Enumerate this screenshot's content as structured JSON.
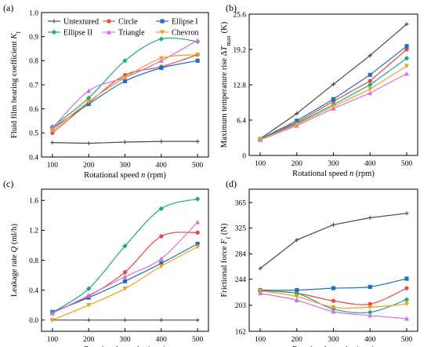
{
  "colors": {
    "Untextured": "#4a4a4a",
    "Circle": "#e8473f",
    "Ellipse I": "#1f6fbf",
    "Ellipse II": "#1aa98a",
    "Triangle": "#d86fe0",
    "Chevron": "#f0a020"
  },
  "chart_data": [
    {
      "panel": "(a)",
      "type": "scatter",
      "xlabel": "Rotational speed  n (rpm)",
      "ylabel": "Fluid film bearing coefficient K_f",
      "x": [
        100,
        200,
        300,
        400,
        500
      ],
      "xlim": [
        70,
        530
      ],
      "ylim": [
        0.4,
        1.0
      ],
      "yticks": [
        0.4,
        0.5,
        0.6,
        0.7,
        0.8,
        0.9,
        1.0
      ],
      "ytick_labels": [
        "0.4",
        "0.5",
        "0.6",
        "0.7",
        "0.8",
        "0.9",
        "1.0"
      ],
      "legend": "top",
      "series": [
        {
          "name": "Untextured",
          "values": [
            0.46,
            0.457,
            0.462,
            0.465,
            0.465
          ]
        },
        {
          "name": "Circle",
          "values": [
            0.5,
            0.625,
            0.74,
            0.775,
            0.825
          ]
        },
        {
          "name": "Ellipse I",
          "values": [
            0.52,
            0.62,
            0.715,
            0.77,
            0.8
          ]
        },
        {
          "name": "Ellipse II",
          "values": [
            0.525,
            0.645,
            0.8,
            0.89,
            0.88
          ]
        },
        {
          "name": "Triangle",
          "values": [
            0.52,
            0.675,
            0.73,
            0.8,
            0.885
          ]
        },
        {
          "name": "Chevron",
          "values": [
            0.51,
            0.63,
            0.73,
            0.81,
            0.825
          ]
        }
      ]
    },
    {
      "panel": "(b)",
      "type": "line",
      "xlabel": "Rotational speed  n (rpm)",
      "ylabel": "Maximum temperature rise ΔT_max (K)",
      "x": [
        100,
        200,
        300,
        400,
        500
      ],
      "xlim": [
        70,
        530
      ],
      "ylim": [
        0,
        25.6
      ],
      "yticks": [
        0,
        6.4,
        12.8,
        19.2,
        25.6
      ],
      "ytick_labels": [
        "0",
        "6.4",
        "12.8",
        "19.2",
        "25.6"
      ],
      "series": [
        {
          "name": "Untextured",
          "values": [
            3.0,
            7.6,
            12.9,
            18.1,
            23.8
          ]
        },
        {
          "name": "Circle",
          "values": [
            2.9,
            6.0,
            9.8,
            13.5,
            19.2
          ]
        },
        {
          "name": "Ellipse I",
          "values": [
            2.95,
            6.3,
            10.2,
            14.6,
            19.8
          ]
        },
        {
          "name": "Ellipse II",
          "values": [
            2.9,
            5.8,
            9.2,
            12.8,
            17.6
          ]
        },
        {
          "name": "Triangle",
          "values": [
            2.8,
            5.4,
            8.5,
            11.3,
            14.8
          ]
        },
        {
          "name": "Chevron",
          "values": [
            2.9,
            5.6,
            8.9,
            12.0,
            16.2
          ]
        }
      ]
    },
    {
      "panel": "(c)",
      "type": "scatter",
      "xlabel": "Rotational speed  n (rpm)",
      "ylabel": "Leakage rate Q (ml/h)",
      "x": [
        100,
        200,
        300,
        400,
        500
      ],
      "xlim": [
        70,
        530
      ],
      "ylim": [
        -0.15,
        1.75
      ],
      "yticks": [
        0.0,
        0.4,
        0.8,
        1.2,
        1.6
      ],
      "ytick_labels": [
        "0.0",
        "0.4",
        "0.8",
        "1.2",
        "1.6"
      ],
      "series": [
        {
          "name": "Untextured",
          "values": [
            0.0,
            0.0,
            0.0,
            0.0,
            0.0
          ]
        },
        {
          "name": "Circle",
          "values": [
            0.1,
            0.32,
            0.64,
            1.12,
            1.17
          ]
        },
        {
          "name": "Ellipse I",
          "values": [
            0.11,
            0.3,
            0.52,
            0.76,
            1.02
          ]
        },
        {
          "name": "Ellipse II",
          "values": [
            0.1,
            0.42,
            0.99,
            1.49,
            1.62
          ]
        },
        {
          "name": "Triangle",
          "values": [
            0.09,
            0.33,
            0.58,
            0.82,
            1.31
          ]
        },
        {
          "name": "Chevron",
          "values": [
            0.0,
            0.2,
            0.42,
            0.72,
            0.98
          ]
        }
      ]
    },
    {
      "panel": "(d)",
      "type": "scatter",
      "xlabel": "Rotational speed  n (rpm)",
      "ylabel": "Frictional force F_f (N)",
      "x": [
        100,
        200,
        300,
        400,
        500
      ],
      "xlim": [
        70,
        530
      ],
      "ylim": [
        162,
        386
      ],
      "yticks": [
        162,
        203,
        244,
        284,
        325,
        365
      ],
      "ytick_labels": [
        "162",
        "203",
        "244",
        "284",
        "325",
        "365"
      ],
      "series": [
        {
          "name": "Untextured",
          "values": [
            261,
            306,
            330,
            341,
            348
          ]
        },
        {
          "name": "Circle",
          "values": [
            226,
            222,
            210,
            205,
            230
          ]
        },
        {
          "name": "Ellipse I",
          "values": [
            227,
            227,
            230,
            232,
            245
          ]
        },
        {
          "name": "Ellipse II",
          "values": [
            225,
            222,
            197,
            192,
            212
          ]
        },
        {
          "name": "Triangle",
          "values": [
            222,
            211,
            193,
            187,
            182
          ]
        },
        {
          "name": "Chevron",
          "values": [
            226,
            217,
            200,
            200,
            205
          ]
        }
      ]
    }
  ]
}
